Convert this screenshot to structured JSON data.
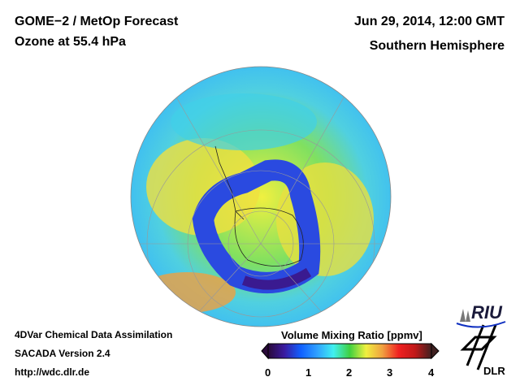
{
  "header": {
    "title": "GOME−2 / MetOp Forecast",
    "subtitle": "Ozone at 55.4 hPa",
    "datetime": "Jun 29, 2014, 12:00 GMT",
    "region": "Southern Hemisphere"
  },
  "footer": {
    "line1": "4DVar Chemical Data Assimilation",
    "line2": "SACADA Version 2.4",
    "url": "http://wdc.dlr.de"
  },
  "colorbar": {
    "title": "Volume Mixing Ratio [ppmv]",
    "ticks": [
      "0",
      "1",
      "2",
      "3",
      "4"
    ],
    "range": [
      0,
      4
    ],
    "colors": [
      "#2a0a3a",
      "#3a1aa0",
      "#1060ff",
      "#30a0ff",
      "#40f0f0",
      "#40d040",
      "#f0f040",
      "#f0a040",
      "#f02020",
      "#c01818",
      "#402020"
    ]
  },
  "logos": {
    "riu": "RIU",
    "dlr": "DLR"
  }
}
